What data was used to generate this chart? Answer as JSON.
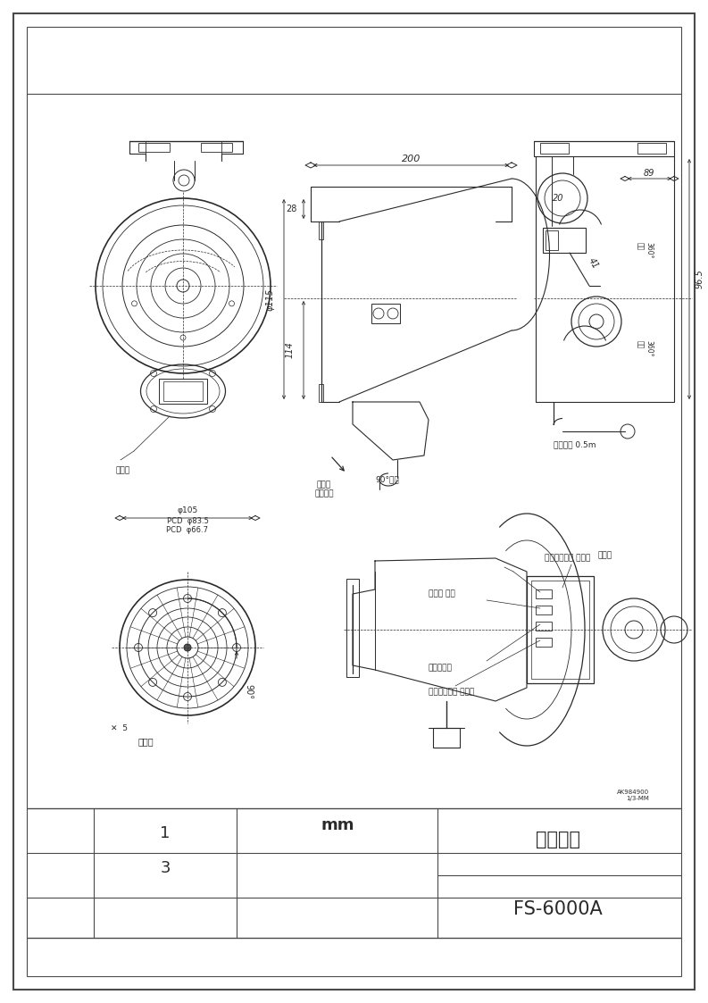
{
  "page_bg": "#ffffff",
  "border_color": "#4a4a4a",
  "line_color": "#2a2a2a",
  "title_text1": "炎センサ",
  "title_text2": "FS-6000A",
  "unit_text": "mm",
  "label_chikimado": "検知窓",
  "label_kabetsuke": "壁付時\n天井付時",
  "label_90deg": "90°可変",
  "label_cord": "コード長 0.5m",
  "label_onryo": "音量（ボリュ ーム）",
  "label_hairesen": "配線孔",
  "label_onsei": "音声モ ード",
  "label_timer": "検知タイマ",
  "label_kando": "感度（ボリュ ーム）",
  "label_toritsukeana": "取付穴",
  "dim_200": "200",
  "dim_89": "89",
  "dim_28": "28",
  "dim_115": "φ115",
  "dim_114": "114",
  "dim_41": "41",
  "dim_20": "20",
  "dim_96_5": "96.5",
  "dim_105": "φ105",
  "dim_pcd835": "PCD  φ83.5",
  "dim_pcd667": "PCD  φ66.7",
  "dim_90": "90°",
  "note_code": "AK984900\n1/3-MM"
}
